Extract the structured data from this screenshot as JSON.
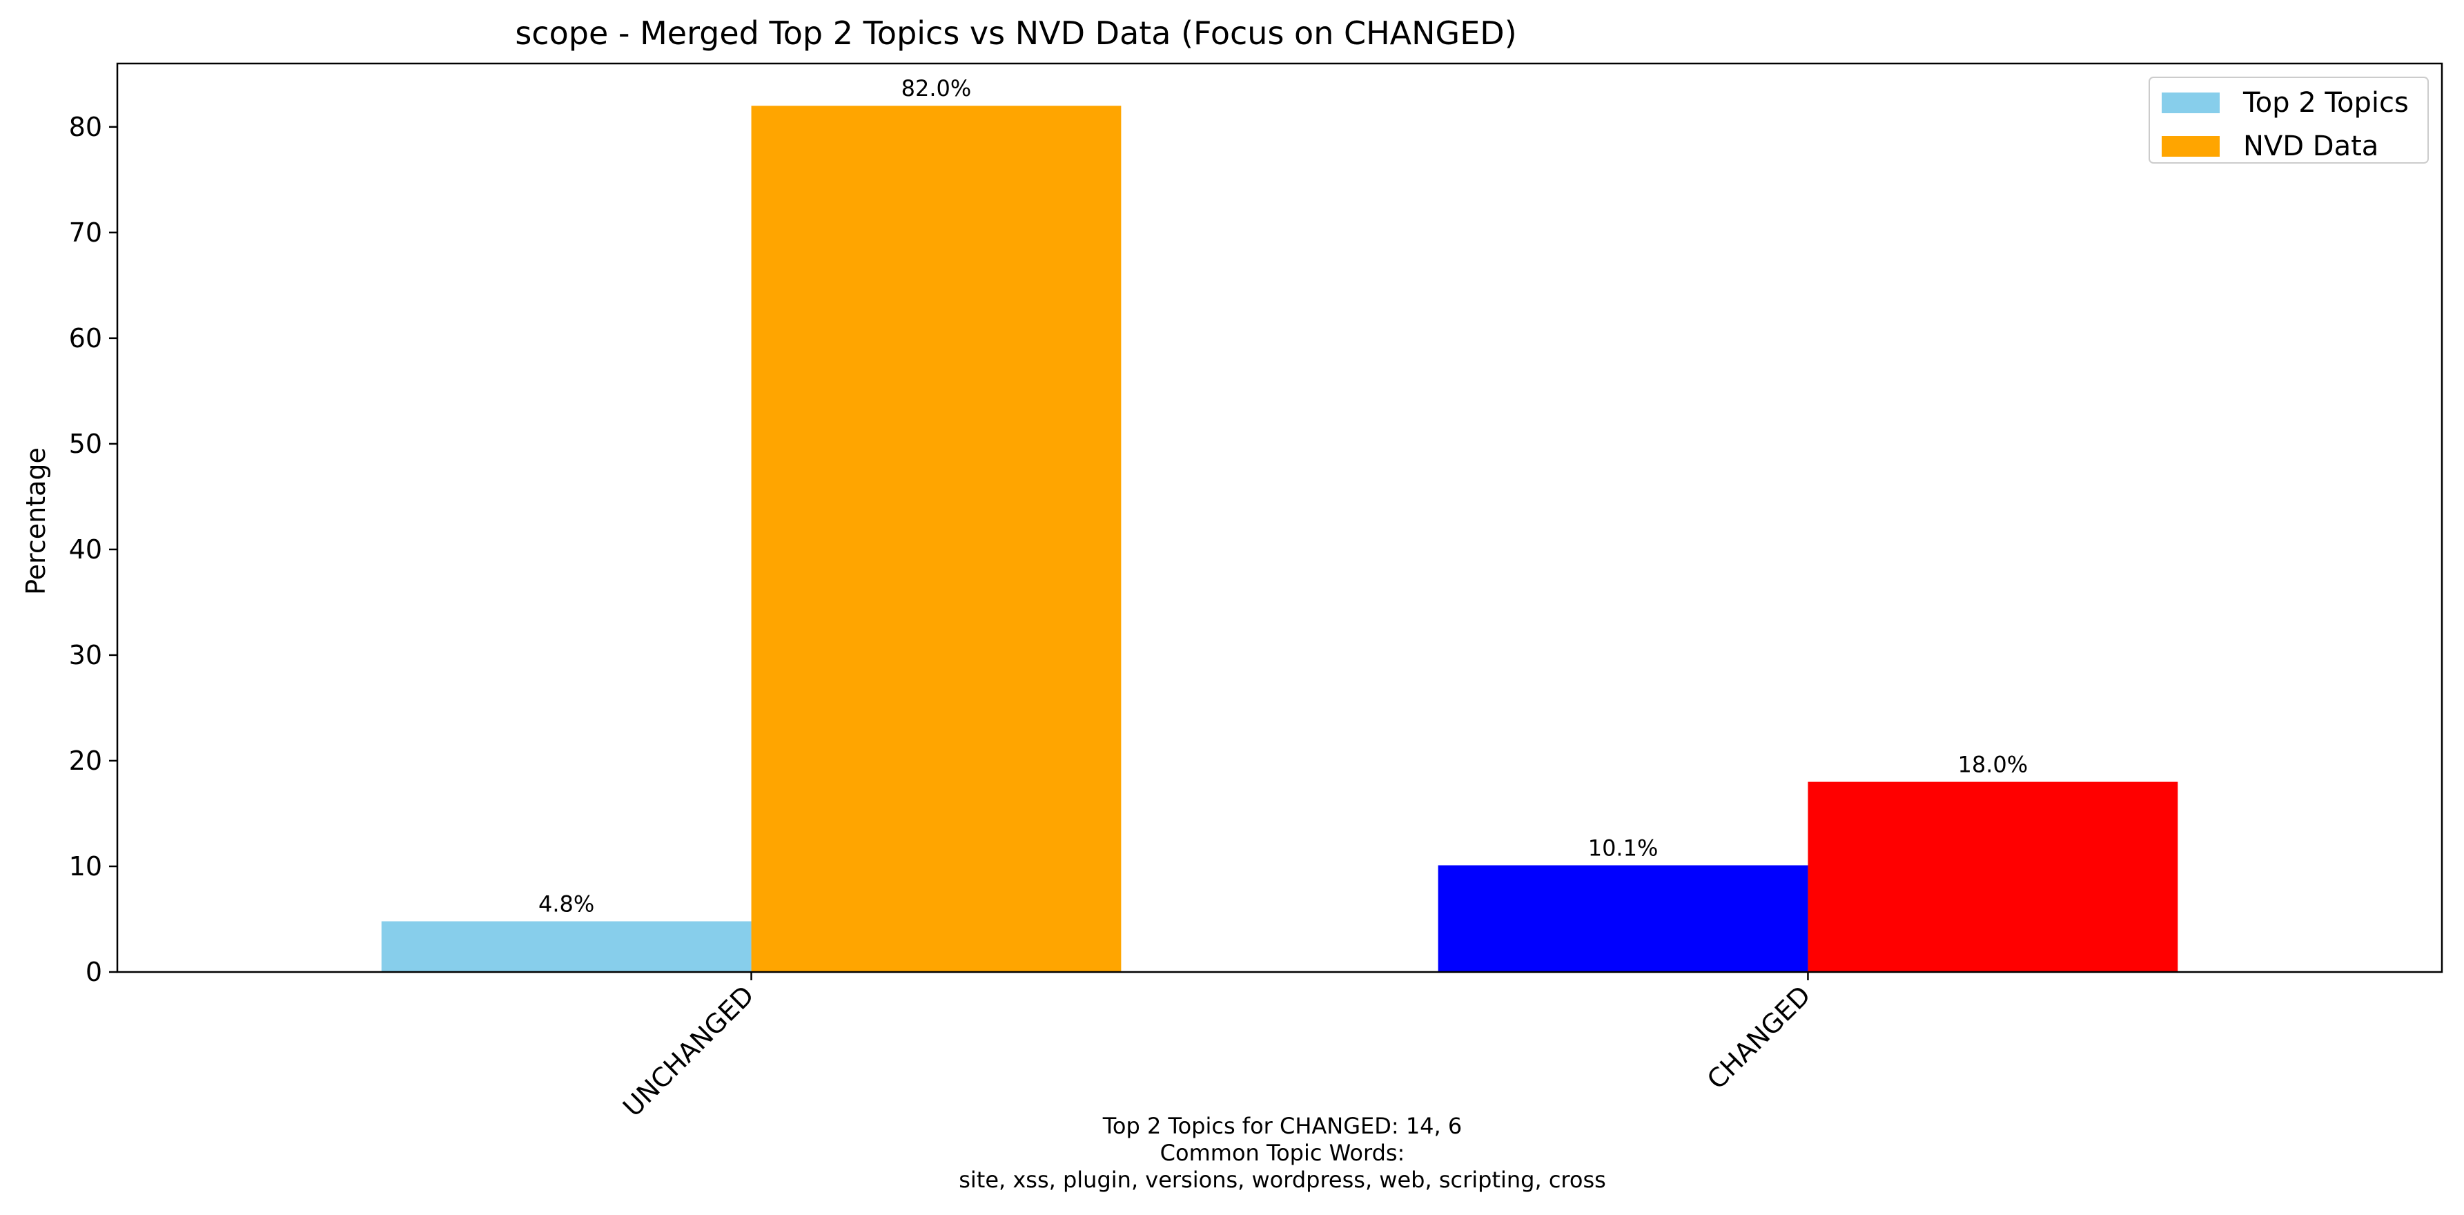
{
  "chart_data": {
    "type": "bar",
    "title": "scope - Merged Top 2 Topics vs NVD Data (Focus on CHANGED)",
    "xlabel": "",
    "ylabel": "Percentage",
    "categories": [
      "UNCHANGED",
      "CHANGED"
    ],
    "ylim": [
      0,
      86
    ],
    "yticks": [
      0,
      10,
      20,
      30,
      40,
      50,
      60,
      70,
      80
    ],
    "grid": false,
    "legend_position": "top-right",
    "series": [
      {
        "name": "Top 2 Topics",
        "legend_color": "#87ceeb",
        "values": [
          4.8,
          10.1
        ],
        "bar_colors": [
          "#87ceeb",
          "#0000ff"
        ],
        "labels": [
          "4.8%",
          "10.1%"
        ]
      },
      {
        "name": "NVD Data",
        "legend_color": "#ffa500",
        "values": [
          82.0,
          18.0
        ],
        "bar_colors": [
          "#ffa500",
          "#ff0000"
        ],
        "labels": [
          "82.0%",
          "18.0%"
        ]
      }
    ],
    "annotation_lines": [
      "Top 2 Topics for CHANGED: 14, 6",
      "Common Topic Words:",
      "site,  xss,  plugin,  versions,  wordpress,  web,  scripting,  cross"
    ]
  }
}
